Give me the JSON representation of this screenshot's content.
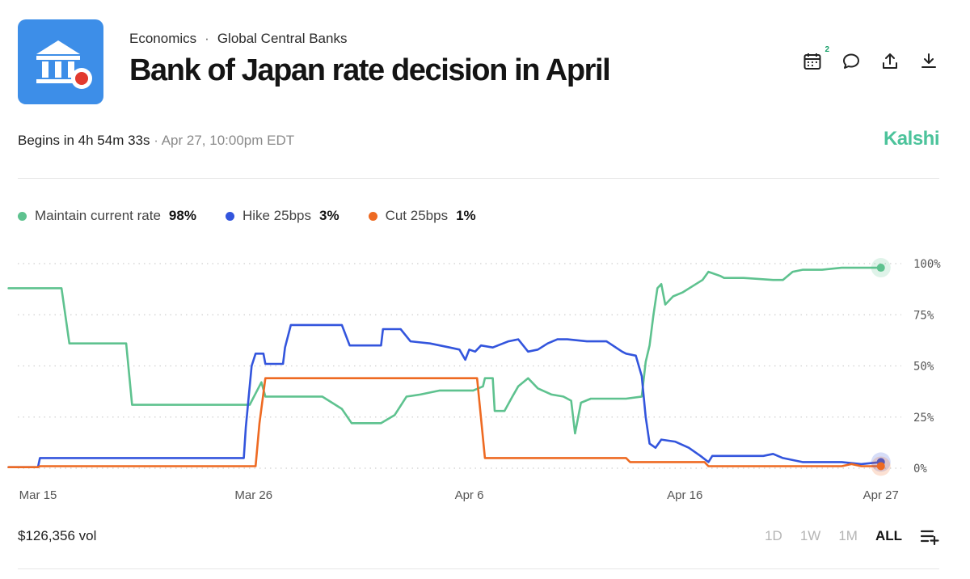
{
  "breadcrumb": {
    "category": "Economics",
    "separator": "·",
    "subcategory": "Global Central Banks"
  },
  "title": "Bank of Japan rate decision in April",
  "actions": {
    "calendar_badge": "2"
  },
  "status": {
    "begins": "Begins in 4h 54m 33s",
    "separator": "·",
    "date": "Apr 27, 10:00pm EDT"
  },
  "brand": "Kalshi",
  "volume": "$126,356 vol",
  "ranges": [
    "1D",
    "1W",
    "1M",
    "ALL"
  ],
  "active_range": "ALL",
  "colors": {
    "maintain": "#5ec28f",
    "hike": "#3355dd",
    "cut": "#ee6a22",
    "logo_bg": "#3d8ee8",
    "brand": "#4cc39b"
  },
  "chart_data": {
    "type": "line",
    "x_unit": "days from Mar 15",
    "xlim": [
      0,
      43.7
    ],
    "ylim": [
      0,
      100
    ],
    "y_ticks": [
      0,
      25,
      50,
      75,
      100
    ],
    "y_tick_labels": [
      "0%",
      "25%",
      "50%",
      "75%",
      "100%"
    ],
    "x_ticks": [
      0,
      11,
      22,
      33,
      43
    ],
    "x_tick_labels": [
      "Mar 15",
      "Mar 26",
      "Apr 6",
      "Apr 16",
      "Apr 27"
    ],
    "grid": true,
    "series": [
      {
        "name": "Maintain current rate",
        "current": "98%",
        "color": "#5ec28f",
        "points": [
          [
            -1.5,
            88
          ],
          [
            1.2,
            88
          ],
          [
            1.6,
            61
          ],
          [
            4.5,
            61
          ],
          [
            4.8,
            31
          ],
          [
            10.8,
            31
          ],
          [
            11.4,
            42
          ],
          [
            11.6,
            35
          ],
          [
            12.5,
            35
          ],
          [
            14.5,
            35
          ],
          [
            15.0,
            32
          ],
          [
            15.5,
            29
          ],
          [
            16.0,
            22
          ],
          [
            17.5,
            22
          ],
          [
            18.2,
            26
          ],
          [
            18.8,
            35
          ],
          [
            19.5,
            36
          ],
          [
            20.5,
            38
          ],
          [
            21.2,
            38
          ],
          [
            22.2,
            38
          ],
          [
            22.7,
            40
          ],
          [
            22.8,
            44
          ],
          [
            23.2,
            44
          ],
          [
            23.3,
            28
          ],
          [
            23.8,
            28
          ],
          [
            24.2,
            35
          ],
          [
            24.5,
            40
          ],
          [
            25.0,
            44
          ],
          [
            25.5,
            39
          ],
          [
            26.2,
            36
          ],
          [
            26.8,
            35
          ],
          [
            27.2,
            33
          ],
          [
            27.4,
            17
          ],
          [
            27.7,
            32
          ],
          [
            28.2,
            34
          ],
          [
            29.0,
            34
          ],
          [
            30.0,
            34
          ],
          [
            30.8,
            35
          ],
          [
            31.0,
            52
          ],
          [
            31.2,
            60
          ],
          [
            31.4,
            75
          ],
          [
            31.6,
            88
          ],
          [
            31.8,
            90
          ],
          [
            32.0,
            80
          ],
          [
            32.4,
            84
          ],
          [
            32.9,
            86
          ],
          [
            33.4,
            89
          ],
          [
            33.9,
            92
          ],
          [
            34.2,
            96
          ],
          [
            34.8,
            94
          ],
          [
            35.0,
            93
          ],
          [
            36.0,
            93
          ],
          [
            37.5,
            92
          ],
          [
            38.0,
            92
          ],
          [
            38.5,
            96
          ],
          [
            39.0,
            97
          ],
          [
            40.0,
            97
          ],
          [
            41.0,
            98
          ],
          [
            42.0,
            98
          ],
          [
            43.0,
            98
          ]
        ]
      },
      {
        "name": "Hike 25bps",
        "current": "3%",
        "color": "#3355dd",
        "points": [
          [
            -1.5,
            0.5
          ],
          [
            0,
            0.5
          ],
          [
            0.1,
            5
          ],
          [
            10.5,
            5
          ],
          [
            10.6,
            20
          ],
          [
            10.9,
            50
          ],
          [
            11.1,
            56
          ],
          [
            11.5,
            56
          ],
          [
            11.6,
            51
          ],
          [
            12.5,
            51
          ],
          [
            12.6,
            59
          ],
          [
            12.9,
            70
          ],
          [
            15.5,
            70
          ],
          [
            15.9,
            60
          ],
          [
            17.5,
            60
          ],
          [
            17.6,
            68
          ],
          [
            18.5,
            68
          ],
          [
            19.0,
            62
          ],
          [
            20.0,
            61
          ],
          [
            21.0,
            59
          ],
          [
            21.5,
            58
          ],
          [
            21.8,
            53
          ],
          [
            22.0,
            58
          ],
          [
            22.3,
            57
          ],
          [
            22.6,
            60
          ],
          [
            23.2,
            59
          ],
          [
            24.0,
            62
          ],
          [
            24.5,
            63
          ],
          [
            25.0,
            57
          ],
          [
            25.5,
            58
          ],
          [
            26.0,
            61
          ],
          [
            26.5,
            63
          ],
          [
            27.0,
            63
          ],
          [
            28.0,
            62
          ],
          [
            29.0,
            62
          ],
          [
            29.8,
            57
          ],
          [
            30.0,
            56
          ],
          [
            30.5,
            55
          ],
          [
            30.8,
            45
          ],
          [
            31.0,
            25
          ],
          [
            31.2,
            12
          ],
          [
            31.5,
            10
          ],
          [
            31.8,
            14
          ],
          [
            32.5,
            13
          ],
          [
            33.2,
            10
          ],
          [
            33.8,
            6
          ],
          [
            34.2,
            3
          ],
          [
            34.4,
            6
          ],
          [
            35.0,
            6
          ],
          [
            36.0,
            6
          ],
          [
            37.0,
            6
          ],
          [
            37.5,
            7
          ],
          [
            38.0,
            5
          ],
          [
            38.5,
            4
          ],
          [
            39.0,
            3
          ],
          [
            40.0,
            3
          ],
          [
            41.0,
            3
          ],
          [
            42.0,
            2
          ],
          [
            43.0,
            3
          ]
        ]
      },
      {
        "name": "Cut 25bps",
        "current": "1%",
        "color": "#ee6a22",
        "points": [
          [
            -1.5,
            0.5
          ],
          [
            0,
            0.5
          ],
          [
            0.1,
            1
          ],
          [
            11.1,
            1
          ],
          [
            11.3,
            22
          ],
          [
            11.6,
            44
          ],
          [
            22.4,
            44
          ],
          [
            22.8,
            5
          ],
          [
            30.0,
            5
          ],
          [
            30.2,
            3
          ],
          [
            34.0,
            3
          ],
          [
            34.2,
            1
          ],
          [
            41.0,
            1
          ],
          [
            41.5,
            2
          ],
          [
            42.0,
            1
          ],
          [
            43.0,
            1
          ]
        ]
      }
    ]
  }
}
